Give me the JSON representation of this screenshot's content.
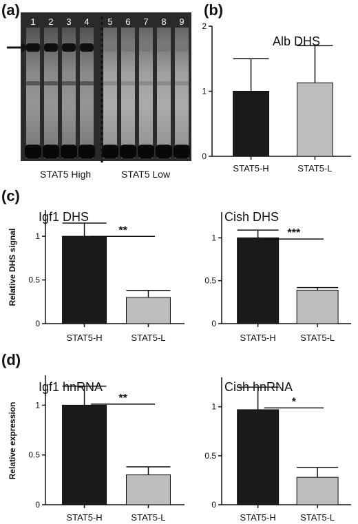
{
  "panels": {
    "a": "(a)",
    "b": "(b)",
    "c": "(c)",
    "d": "(d)"
  },
  "gel": {
    "lanes": [
      "1",
      "2",
      "3",
      "4",
      "5",
      "6",
      "7",
      "8",
      "9"
    ],
    "group_high": "STAT5 High",
    "group_low": "STAT5 Low",
    "colors": {
      "background": "#2a2a2a",
      "low_lane": "#8c8c8c"
    }
  },
  "y_axis_labels": {
    "c": "Relative DHS signal",
    "d": "Relative expression"
  },
  "colors": {
    "high_bar": "#1a1a1a",
    "low_bar": "#bdbdbd"
  },
  "chart_data": [
    {
      "id": "b",
      "type": "bar",
      "title": "Alb DHS",
      "categories": [
        "STAT5-H",
        "STAT5-L"
      ],
      "values": [
        1.0,
        1.13
      ],
      "errors": [
        0.5,
        0.57
      ],
      "ylim": [
        0,
        2
      ],
      "yticks": [
        0,
        1,
        2
      ],
      "ytick_labels": [
        "0",
        "1",
        "2"
      ],
      "significance": null,
      "ylabel": ""
    },
    {
      "id": "c1",
      "type": "bar",
      "title": "Igf1 DHS",
      "categories": [
        "STAT5-H",
        "STAT5-L"
      ],
      "values": [
        1.0,
        0.3
      ],
      "errors": [
        0.15,
        0.08
      ],
      "ylim": [
        0,
        1.3
      ],
      "yticks": [
        0,
        0.5,
        1
      ],
      "ytick_labels": [
        "0",
        "0.5",
        "1"
      ],
      "significance": "**",
      "ylabel": ""
    },
    {
      "id": "c2",
      "type": "bar",
      "title": "Cish DHS",
      "categories": [
        "STAT5-H",
        "STAT5-L"
      ],
      "values": [
        1.0,
        0.39
      ],
      "errors": [
        0.09,
        0.03
      ],
      "ylim": [
        0,
        1.3
      ],
      "yticks": [
        0,
        0.5,
        1
      ],
      "ytick_labels": [
        "0",
        "0.5",
        "1"
      ],
      "significance": "***",
      "ylabel": ""
    },
    {
      "id": "d1",
      "type": "bar",
      "title": "Igf1 hnRNA",
      "categories": [
        "STAT5-H",
        "STAT5-L"
      ],
      "values": [
        1.0,
        0.3
      ],
      "errors": [
        0.19,
        0.08
      ],
      "ylim": [
        0,
        1.3
      ],
      "yticks": [
        0,
        0.5,
        1
      ],
      "ytick_labels": [
        "0",
        "0.5",
        "1"
      ],
      "significance": "**",
      "ylabel": ""
    },
    {
      "id": "d2",
      "type": "bar",
      "title": "Cish hnRNA",
      "categories": [
        "STAT5-H",
        "STAT5-L"
      ],
      "values": [
        0.97,
        0.28
      ],
      "errors": [
        0.23,
        0.1
      ],
      "ylim": [
        0,
        1.3
      ],
      "yticks": [
        0,
        0.5,
        1
      ],
      "ytick_labels": [
        "0",
        "0.5",
        "1"
      ],
      "significance": "*",
      "ylabel": ""
    }
  ]
}
